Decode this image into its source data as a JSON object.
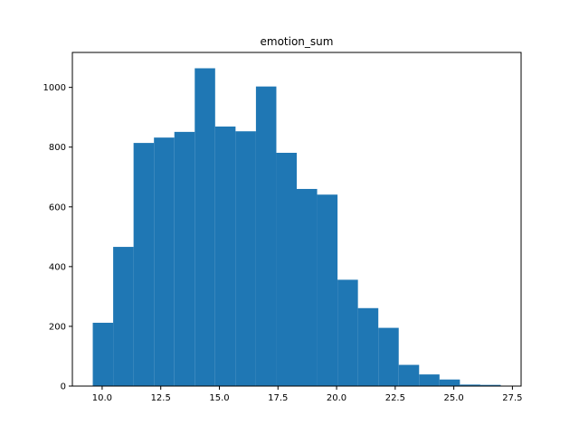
{
  "chart_data": {
    "type": "bar",
    "title": "emotion_sum",
    "xlabel": "",
    "ylabel": "",
    "bin_edges": [
      9.6,
      10.47,
      11.34,
      12.21,
      13.08,
      13.95,
      14.82,
      15.69,
      16.56,
      17.43,
      18.3,
      19.17,
      20.04,
      20.91,
      21.78,
      22.65,
      23.52,
      24.39,
      25.26,
      26.13,
      27.0
    ],
    "values": [
      212,
      466,
      814,
      832,
      851,
      1064,
      869,
      853,
      1003,
      781,
      660,
      641,
      356,
      261,
      195,
      71,
      39,
      22,
      5,
      4
    ],
    "xlim": [
      8.73,
      27.87
    ],
    "ylim": [
      0,
      1117
    ],
    "xticks": [
      10.0,
      12.5,
      15.0,
      17.5,
      20.0,
      22.5,
      25.0,
      27.5
    ],
    "xtick_labels": [
      "10.0",
      "12.5",
      "15.0",
      "17.5",
      "20.0",
      "22.5",
      "25.0",
      "27.5"
    ],
    "yticks": [
      0,
      200,
      400,
      600,
      800,
      1000
    ],
    "ytick_labels": [
      "0",
      "200",
      "400",
      "600",
      "800",
      "1000"
    ],
    "bar_color": "#1f77b4",
    "grid": false,
    "legend": "none"
  }
}
